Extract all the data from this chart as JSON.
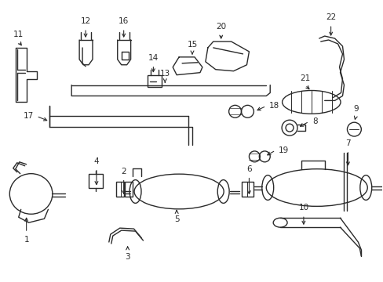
{
  "bg_color": "#ffffff",
  "line_color": "#2a2a2a",
  "lw": 1.0
}
